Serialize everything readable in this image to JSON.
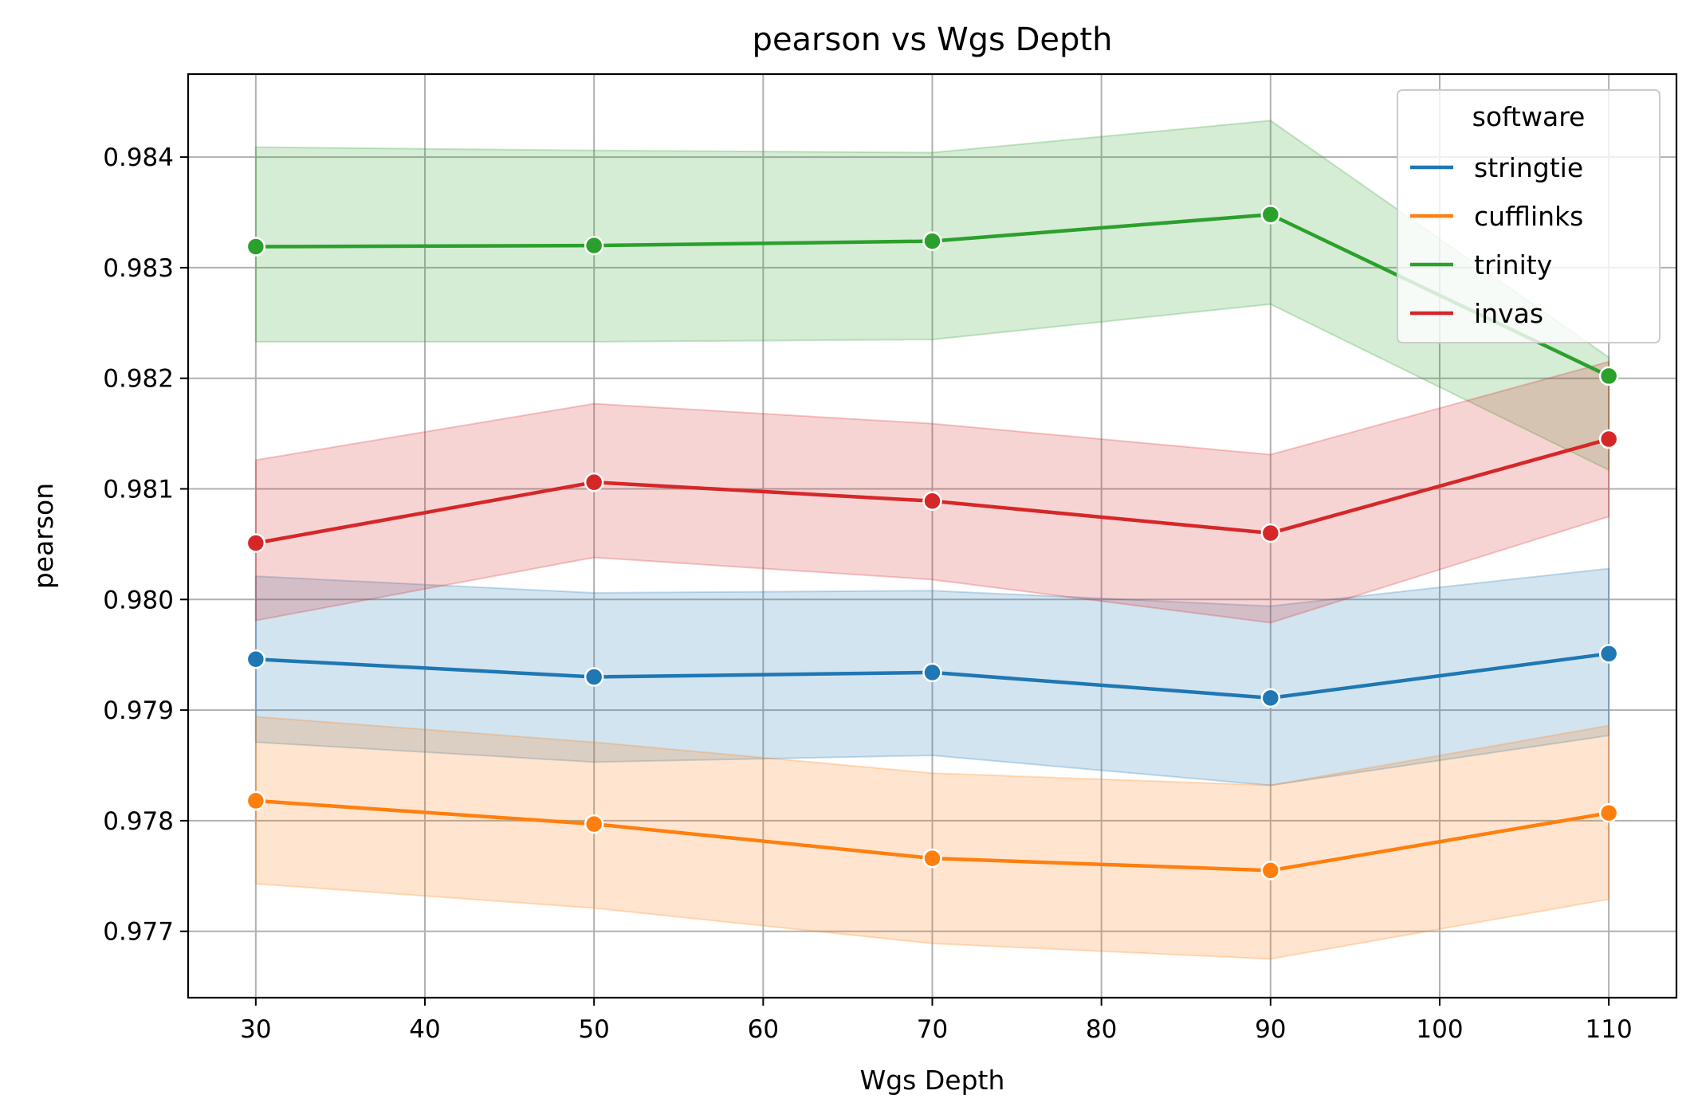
{
  "chart_data": {
    "type": "line",
    "title": "pearson vs Wgs Depth",
    "xlabel": "Wgs Depth",
    "ylabel": "pearson",
    "x": [
      30,
      50,
      70,
      90,
      110
    ],
    "xlim": [
      26,
      114
    ],
    "ylim": [
      0.9764,
      0.98475
    ],
    "xticks": [
      30,
      40,
      50,
      60,
      70,
      80,
      90,
      100,
      110
    ],
    "xtick_labels": [
      "30",
      "40",
      "50",
      "60",
      "70",
      "80",
      "90",
      "100",
      "110"
    ],
    "yticks": [
      0.977,
      0.978,
      0.979,
      0.98,
      0.981,
      0.982,
      0.983,
      0.984
    ],
    "ytick_labels": [
      "0.977",
      "0.978",
      "0.979",
      "0.980",
      "0.981",
      "0.982",
      "0.983",
      "0.984"
    ],
    "grid": true,
    "legend": {
      "title": "software",
      "placement": "top-right"
    },
    "series": [
      {
        "name": "stringtie",
        "color": "#1f77b4",
        "values": [
          0.97946,
          0.9793,
          0.97934,
          0.97911,
          0.97951
        ],
        "ci_upper": [
          0.98021,
          0.98006,
          0.98008,
          0.97994,
          0.98028
        ],
        "ci_lower": [
          0.97871,
          0.97853,
          0.97859,
          0.97832,
          0.97877
        ]
      },
      {
        "name": "cufflinks",
        "color": "#ff7f0e",
        "values": [
          0.97818,
          0.97797,
          0.97766,
          0.97755,
          0.97807
        ],
        "ci_upper": [
          0.97894,
          0.97871,
          0.97843,
          0.97832,
          0.97886
        ],
        "ci_lower": [
          0.97743,
          0.97721,
          0.97689,
          0.97675,
          0.97729
        ]
      },
      {
        "name": "trinity",
        "color": "#2ca02c",
        "values": [
          0.98319,
          0.9832,
          0.98324,
          0.98348,
          0.98202
        ],
        "ci_upper": [
          0.98409,
          0.98406,
          0.98404,
          0.98433,
          0.98219
        ],
        "ci_lower": [
          0.98233,
          0.98233,
          0.98235,
          0.98267,
          0.98117
        ]
      },
      {
        "name": "invas",
        "color": "#d62728",
        "values": [
          0.98051,
          0.98106,
          0.98089,
          0.9806,
          0.98145
        ],
        "ci_upper": [
          0.98126,
          0.98177,
          0.98159,
          0.98131,
          0.98215
        ],
        "ci_lower": [
          0.97981,
          0.98038,
          0.98018,
          0.97979,
          0.98075
        ]
      }
    ]
  }
}
